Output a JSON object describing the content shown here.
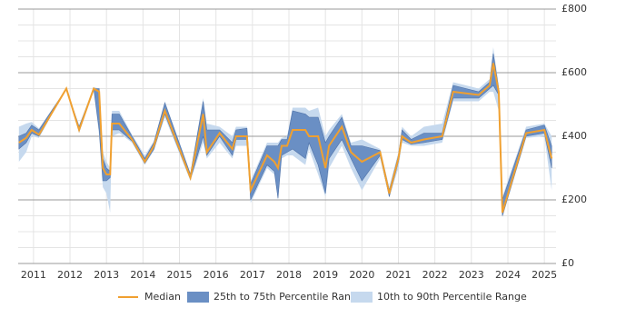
{
  "chart_data": {
    "type": "line",
    "x": [
      2010.6,
      2010.8,
      2010.95,
      2011.15,
      2011.9,
      2012.25,
      2012.65,
      2012.8,
      2012.9,
      2013.0,
      2013.1,
      2013.15,
      2013.35,
      2013.7,
      2014.05,
      2014.3,
      2014.6,
      2015.3,
      2015.65,
      2015.75,
      2016.1,
      2016.45,
      2016.55,
      2016.85,
      2016.95,
      2017.4,
      2017.6,
      2017.7,
      2017.8,
      2017.95,
      2018.1,
      2018.45,
      2018.55,
      2018.8,
      2019.0,
      2019.1,
      2019.45,
      2019.7,
      2020.0,
      2020.5,
      2020.75,
      2021.0,
      2021.1,
      2021.35,
      2021.7,
      2022.2,
      2022.5,
      2023.2,
      2023.5,
      2023.6,
      2023.75,
      2023.85,
      2024.5,
      2025.0,
      2025.2
    ],
    "series": [
      {
        "name": "10th to 90th Percentile Range",
        "color": "#c6d9ee",
        "low": [
          320,
          350,
          400,
          395,
          550,
          410,
          545,
          400,
          240,
          220,
          160,
          400,
          410,
          380,
          310,
          355,
          460,
          260,
          380,
          330,
          380,
          330,
          370,
          370,
          190,
          300,
          280,
          200,
          330,
          340,
          340,
          310,
          360,
          280,
          210,
          300,
          370,
          300,
          230,
          330,
          210,
          300,
          380,
          370,
          370,
          380,
          510,
          510,
          540,
          540,
          480,
          145,
          395,
          400,
          230
        ],
        "high": [
          430,
          440,
          445,
          425,
          550,
          435,
          555,
          550,
          350,
          320,
          300,
          480,
          480,
          405,
          340,
          385,
          510,
          285,
          520,
          440,
          430,
          400,
          430,
          430,
          260,
          380,
          380,
          380,
          395,
          400,
          490,
          490,
          480,
          490,
          400,
          420,
          470,
          380,
          390,
          360,
          240,
          350,
          430,
          400,
          430,
          440,
          570,
          550,
          580,
          680,
          560,
          210,
          430,
          440,
          400
        ]
      },
      {
        "name": "25th to 75th Percentile Range",
        "color": "#6a8fc4",
        "low": [
          360,
          380,
          410,
          400,
          550,
          415,
          550,
          420,
          260,
          260,
          270,
          420,
          420,
          385,
          315,
          360,
          470,
          265,
          400,
          340,
          400,
          340,
          390,
          390,
          200,
          310,
          290,
          205,
          340,
          350,
          360,
          330,
          380,
          310,
          220,
          330,
          390,
          330,
          260,
          340,
          210,
          320,
          390,
          375,
          380,
          390,
          520,
          520,
          550,
          560,
          530,
          150,
          400,
          410,
          300
        ],
        "high": [
          400,
          410,
          435,
          420,
          550,
          430,
          550,
          550,
          330,
          300,
          290,
          470,
          470,
          400,
          330,
          380,
          505,
          280,
          510,
          420,
          420,
          380,
          420,
          425,
          250,
          370,
          370,
          370,
          390,
          390,
          480,
          470,
          460,
          460,
          380,
          400,
          460,
          370,
          370,
          355,
          230,
          340,
          420,
          390,
          410,
          410,
          560,
          540,
          570,
          660,
          550,
          200,
          420,
          435,
          370
        ]
      },
      {
        "name": "Median",
        "color": "#f0a030",
        "values": [
          380,
          395,
          420,
          405,
          550,
          420,
          550,
          540,
          300,
          280,
          280,
          440,
          440,
          390,
          320,
          370,
          480,
          270,
          470,
          350,
          410,
          360,
          400,
          400,
          230,
          340,
          320,
          300,
          370,
          370,
          420,
          420,
          400,
          400,
          300,
          370,
          430,
          350,
          320,
          350,
          220,
          330,
          400,
          380,
          390,
          400,
          540,
          530,
          560,
          630,
          540,
          160,
          410,
          420,
          330
        ]
      }
    ],
    "xlim": [
      2010.58,
      2025.32
    ],
    "xticks": [
      2011,
      2012,
      2013,
      2014,
      2015,
      2016,
      2017,
      2018,
      2019,
      2020,
      2021,
      2022,
      2023,
      2024,
      2025
    ],
    "ylim": [
      0,
      800
    ],
    "yticks": [
      {
        "value": 0,
        "label": "£0"
      },
      {
        "value": 200,
        "label": "£200"
      },
      {
        "value": 400,
        "label": "£400"
      },
      {
        "value": 600,
        "label": "£600"
      },
      {
        "value": 800,
        "label": "£800"
      }
    ],
    "yticks_minor": [
      50,
      100,
      150,
      250,
      300,
      350,
      450,
      500,
      550,
      650,
      700,
      750
    ],
    "grid": true
  }
}
